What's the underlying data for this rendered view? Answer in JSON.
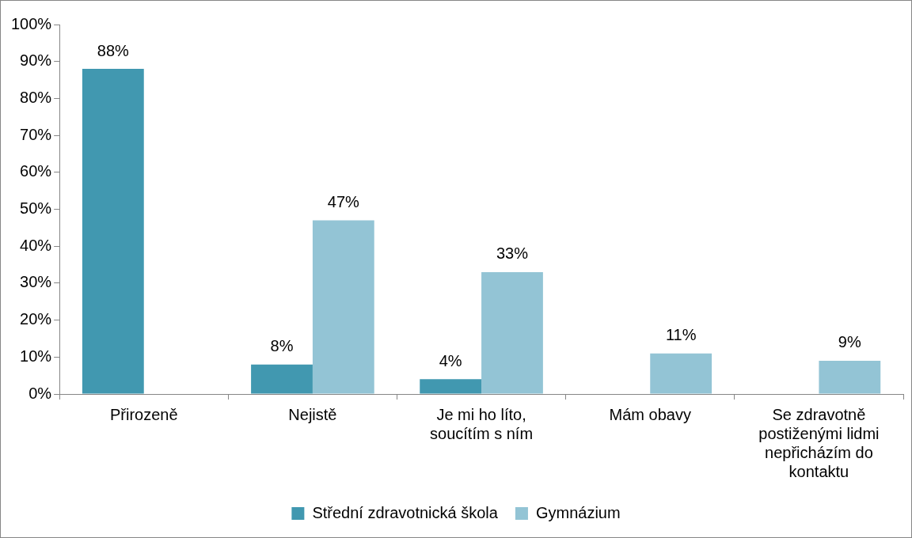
{
  "chart_data": {
    "type": "bar",
    "categories": [
      "Přirozeně",
      "Nejistě",
      "Je mi ho líto, soucítím s ním",
      "Mám obavy",
      "Se zdravotně postiženými lidmi nepřicházím do kontaktu"
    ],
    "series": [
      {
        "name": "Střední zdravotnická škola",
        "color": "#4198b0",
        "values": [
          88,
          8,
          4,
          null,
          null
        ],
        "value_labels": [
          "88%",
          "8%",
          "4%",
          null,
          null
        ]
      },
      {
        "name": "Gymnázium",
        "color": "#93c4d5",
        "values": [
          null,
          47,
          33,
          11,
          9
        ],
        "value_labels": [
          null,
          "47%",
          "33%",
          "11%",
          "9%"
        ]
      }
    ],
    "ylim": [
      0,
      100
    ],
    "yticks": [
      {
        "value": 0,
        "label": "0%"
      },
      {
        "value": 10,
        "label": "10%"
      },
      {
        "value": 20,
        "label": "20%"
      },
      {
        "value": 30,
        "label": "30%"
      },
      {
        "value": 40,
        "label": "40%"
      },
      {
        "value": 50,
        "label": "50%"
      },
      {
        "value": 60,
        "label": "60%"
      },
      {
        "value": 70,
        "label": "70%"
      },
      {
        "value": 80,
        "label": "80%"
      },
      {
        "value": 90,
        "label": "90%"
      },
      {
        "value": 100,
        "label": "100%"
      }
    ],
    "grid": false,
    "legend": "bottom"
  }
}
